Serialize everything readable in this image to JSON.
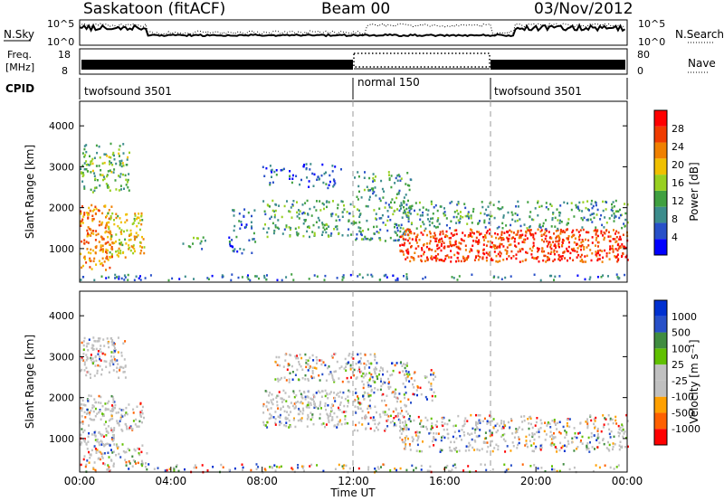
{
  "header": {
    "station": "Saskatoon (fitACF)",
    "beam": "Beam 00",
    "date": "03/Nov/2012"
  },
  "top_panels": {
    "nsky_label": "N.Sky",
    "nsky_ticks": [
      "10^5",
      "10^0"
    ],
    "nsearch_label": "N.Search",
    "nsearch_ticks": [
      "10^5",
      "10^0"
    ],
    "freq_label_1": "Freq.",
    "freq_label_2": "[MHz]",
    "freq_ticks": [
      "18",
      "8"
    ],
    "nave_label": "Nave",
    "nave_ticks": [
      "80",
      "0"
    ],
    "cpid_label": "CPID",
    "cpid_segments": [
      {
        "label": "twofsound 3501",
        "start_hour": 0,
        "end_hour": 12
      },
      {
        "label": "normal 150",
        "start_hour": 12,
        "end_hour": 18
      },
      {
        "label": "twofsound 3501",
        "start_hour": 18,
        "end_hour": 24
      }
    ]
  },
  "colors": {
    "power": [
      "#0000ff",
      "#2850c8",
      "#3c8c8c",
      "#40a040",
      "#98d020",
      "#f0c000",
      "#f08000",
      "#f03c00",
      "#ff0000"
    ],
    "velocity": [
      "#ff0000",
      "#ff6000",
      "#ffa000",
      "#c0c0c0",
      "#c0c0c0",
      "#60c000",
      "#408c40",
      "#2850c8",
      "#0030d0"
    ],
    "grey": "#c0c0c0"
  },
  "chart_data": [
    {
      "type": "heatmap",
      "quantity": "Power",
      "ylabel": "Slant Range [km]",
      "ylim": [
        180,
        4600
      ],
      "yticks": [
        1000,
        2000,
        3000,
        4000
      ],
      "xlim": [
        0,
        24
      ],
      "colorbar": {
        "label": "Power [dB]",
        "range": [
          0,
          30
        ],
        "tick_values": [
          4,
          8,
          12,
          16,
          20,
          24,
          28
        ],
        "ticks": [
          "4",
          "8",
          "12",
          "16",
          "20",
          "24",
          "28"
        ]
      },
      "scatter_regions": [
        {
          "t0": 0.0,
          "t1": 1.4,
          "r0": 500,
          "r1": 2100,
          "level": 0.75
        },
        {
          "t0": 1.2,
          "t1": 2.8,
          "r0": 800,
          "r1": 1900,
          "level": 0.6
        },
        {
          "t0": 0.0,
          "t1": 2.2,
          "r0": 2400,
          "r1": 3600,
          "level": 0.4
        },
        {
          "t0": 4.5,
          "t1": 5.5,
          "r0": 1000,
          "r1": 1300,
          "level": 0.3
        },
        {
          "t0": 6.5,
          "t1": 7.7,
          "r0": 900,
          "r1": 2000,
          "level": 0.2
        },
        {
          "t0": 8.0,
          "t1": 12.0,
          "r0": 1300,
          "r1": 2200,
          "level": 0.35
        },
        {
          "t0": 8.0,
          "t1": 11.5,
          "r0": 2500,
          "r1": 3100,
          "level": 0.15
        },
        {
          "t0": 12.0,
          "t1": 14.5,
          "r0": 1200,
          "r1": 2900,
          "level": 0.3
        },
        {
          "t0": 14.0,
          "t1": 24.0,
          "r0": 700,
          "r1": 1500,
          "level": 0.9
        },
        {
          "t0": 14.0,
          "t1": 24.0,
          "r0": 1500,
          "r1": 2200,
          "level": 0.3
        },
        {
          "t0": 0.0,
          "t1": 24.0,
          "r0": 250,
          "r1": 400,
          "level": 0.2
        }
      ]
    },
    {
      "type": "heatmap",
      "quantity": "Velocity",
      "ylabel": "Slant Range [km]",
      "ylim": [
        180,
        4600
      ],
      "yticks": [
        1000,
        2000,
        3000,
        4000
      ],
      "xlim": [
        0,
        24
      ],
      "xticks": [
        "00:00",
        "04:00",
        "08:00",
        "12:00",
        "16:00",
        "20:00",
        "00:00"
      ],
      "xlabel": "Time UT",
      "colorbar": {
        "label": "Velocity [m s^-1]",
        "ticks": [
          "1000",
          "500",
          "100",
          "25",
          "-25",
          "-100",
          "-500",
          "-1000"
        ]
      },
      "scatter_regions": [
        {
          "t0": 0.0,
          "t1": 1.5,
          "r0": 800,
          "r1": 2100,
          "level": 0.75
        },
        {
          "t0": 1.3,
          "t1": 2.8,
          "r0": 1200,
          "r1": 1900,
          "level": 0.55
        },
        {
          "t0": 0.0,
          "t1": 2.0,
          "r0": 2500,
          "r1": 3500,
          "level": 0.7
        },
        {
          "t0": 0.0,
          "t1": 3.0,
          "r0": 400,
          "r1": 900,
          "level": 0.45
        },
        {
          "t0": 8.0,
          "t1": 11.8,
          "r0": 1300,
          "r1": 2200,
          "level": 0.75
        },
        {
          "t0": 8.5,
          "t1": 13.0,
          "r0": 2400,
          "r1": 3100,
          "level": 0.45
        },
        {
          "t0": 12.0,
          "t1": 14.5,
          "r0": 1200,
          "r1": 2900,
          "level": 0.45
        },
        {
          "t0": 14.0,
          "t1": 24.0,
          "r0": 700,
          "r1": 1600,
          "level": 0.45
        },
        {
          "t0": 14.2,
          "t1": 15.6,
          "r0": 1900,
          "r1": 2700,
          "level": 0.2
        },
        {
          "t0": 0.0,
          "t1": 24.0,
          "r0": 200,
          "r1": 400,
          "level": 0.2
        }
      ]
    }
  ]
}
